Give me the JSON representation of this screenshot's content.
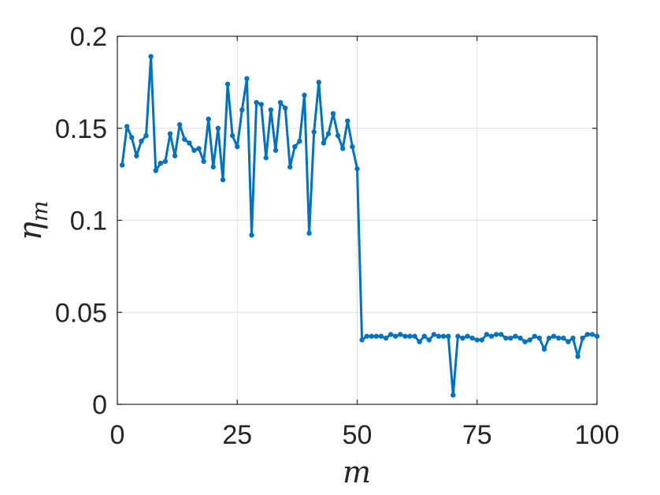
{
  "chart_data": {
    "type": "line",
    "title": "",
    "xlabel": "m",
    "ylabel_main": "η",
    "ylabel_sub": "m",
    "xlim": [
      0,
      100
    ],
    "ylim": [
      0,
      0.2
    ],
    "grid": true,
    "series_color": "#0072BD",
    "xticks": [
      0,
      25,
      50,
      75,
      100
    ],
    "xtick_labels": [
      "0",
      "25",
      "50",
      "75",
      "100"
    ],
    "yticks": [
      0,
      0.05,
      0.1,
      0.15,
      0.2
    ],
    "ytick_labels": [
      "0",
      "0.05",
      "0.1",
      "0.15",
      "0.2"
    ],
    "series": [
      {
        "x": [
          1,
          2,
          3,
          4,
          5,
          6,
          7,
          8,
          9,
          10,
          11,
          12,
          13,
          14,
          15,
          16,
          17,
          18,
          19,
          20,
          21,
          22,
          23,
          24,
          25,
          26,
          27,
          28,
          29,
          30,
          31,
          32,
          33,
          34,
          35,
          36,
          37,
          38,
          39,
          40,
          41,
          42,
          43,
          44,
          45,
          46,
          47,
          48,
          49,
          50,
          51,
          52,
          53,
          54,
          55,
          56,
          57,
          58,
          59,
          60,
          61,
          62,
          63,
          64,
          65,
          66,
          67,
          68,
          69,
          70,
          71,
          72,
          73,
          74,
          75,
          76,
          77,
          78,
          79,
          80,
          81,
          82,
          83,
          84,
          85,
          86,
          87,
          88,
          89,
          90,
          91,
          92,
          93,
          94,
          95,
          96,
          97,
          98,
          99,
          100
        ],
        "y": [
          0.13,
          0.151,
          0.145,
          0.135,
          0.143,
          0.146,
          0.189,
          0.127,
          0.131,
          0.132,
          0.147,
          0.135,
          0.152,
          0.144,
          0.142,
          0.138,
          0.139,
          0.132,
          0.155,
          0.129,
          0.15,
          0.122,
          0.174,
          0.146,
          0.14,
          0.16,
          0.177,
          0.092,
          0.164,
          0.163,
          0.134,
          0.16,
          0.138,
          0.164,
          0.161,
          0.129,
          0.14,
          0.143,
          0.168,
          0.093,
          0.148,
          0.175,
          0.142,
          0.147,
          0.158,
          0.146,
          0.139,
          0.154,
          0.14,
          0.128,
          0.035,
          0.037,
          0.037,
          0.037,
          0.037,
          0.036,
          0.038,
          0.037,
          0.038,
          0.037,
          0.037,
          0.037,
          0.034,
          0.037,
          0.035,
          0.038,
          0.037,
          0.037,
          0.037,
          0.005,
          0.037,
          0.036,
          0.037,
          0.036,
          0.035,
          0.035,
          0.038,
          0.037,
          0.038,
          0.038,
          0.036,
          0.036,
          0.037,
          0.036,
          0.034,
          0.035,
          0.037,
          0.036,
          0.03,
          0.036,
          0.037,
          0.036,
          0.036,
          0.034,
          0.036,
          0.026,
          0.036,
          0.038,
          0.038,
          0.037
        ]
      }
    ]
  }
}
